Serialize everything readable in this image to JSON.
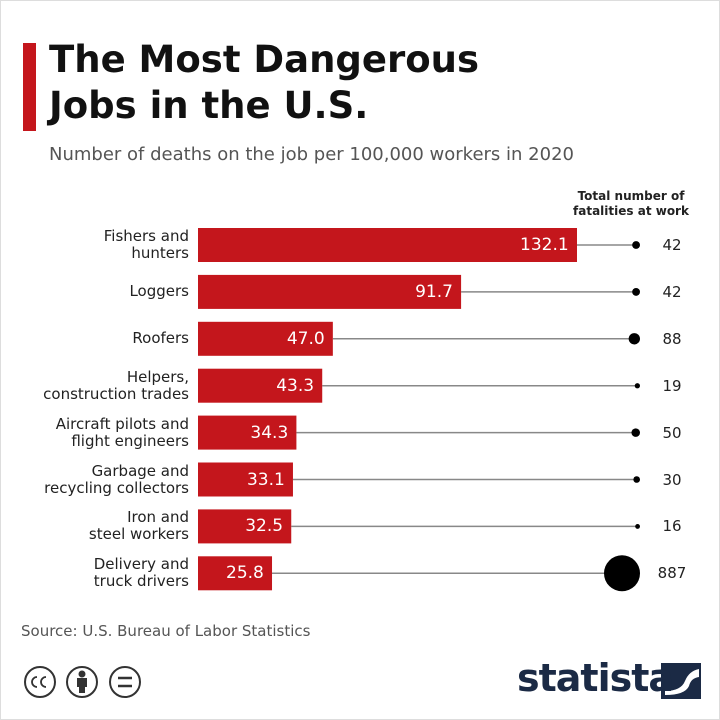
{
  "chart_data": {
    "type": "bar",
    "title": "The Most Dangerous\nJobs in the U.S.",
    "subtitle": "Number of deaths on the job per 100,000 workers in 2020",
    "categories": [
      "Fishers and\nhunters",
      "Loggers",
      "Roofers",
      "Helpers,\nconstruction trades",
      "Aircraft pilots and\nflight engineers",
      "Garbage and\nrecycling collectors",
      "Iron and\nsteel workers",
      "Delivery and\ntruck drivers"
    ],
    "values": [
      132.1,
      91.7,
      47.0,
      43.3,
      34.3,
      33.1,
      32.5,
      25.8
    ],
    "value_labels": [
      "132.1",
      "91.7",
      "47.0",
      "43.3",
      "34.3",
      "33.1",
      "32.5",
      "25.8"
    ],
    "color": "#c4161c",
    "bubbles": {
      "title": "Total number of\nfatalities at work",
      "values": [
        42,
        42,
        88,
        19,
        50,
        30,
        16,
        887
      ],
      "color": "#000000"
    },
    "source": "Source: U.S. Bureau of Labor Statistics",
    "brand": "statista"
  }
}
